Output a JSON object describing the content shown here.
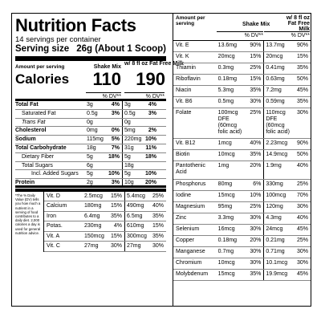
{
  "title": "Nutrition Facts",
  "servings_per_container": "14 servings per container",
  "serving_size_label": "Serving size",
  "serving_size_value": "26g (About 1 Scoop)",
  "amount_per_serving": "Amount per serving",
  "calories_label": "Calories",
  "col1_header": "Shake Mix",
  "col2_header": "w/ 8 fl oz Fat Free Milk",
  "calories_col1": "110",
  "calories_col2": "190",
  "dv_header": "% DV**",
  "left_rows": [
    {
      "name": "Total Fat",
      "a1": "3g",
      "p1": "4%",
      "a2": "3g",
      "p2": "4%",
      "style": "b"
    },
    {
      "name": "Saturated Fat",
      "a1": "0.5g",
      "p1": "3%",
      "a2": "0.5g",
      "p2": "3%",
      "style": "i1"
    },
    {
      "name": "Trans Fat",
      "a1": "0g",
      "p1": "",
      "a2": "0g",
      "p2": "",
      "style": "i1 trans"
    },
    {
      "name": "Cholesterol",
      "a1": "0mg",
      "p1": "0%",
      "a2": "5mg",
      "p2": "2%",
      "style": "b"
    },
    {
      "name": "Sodium",
      "a1": "115mg",
      "p1": "5%",
      "a2": "220mg",
      "p2": "10%",
      "style": "b"
    },
    {
      "name": "Total Carbohydrate",
      "a1": "18g",
      "p1": "7%",
      "a2": "31g",
      "p2": "11%",
      "style": "b"
    },
    {
      "name": "Dietary Fiber",
      "a1": "5g",
      "p1": "18%",
      "a2": "5g",
      "p2": "18%",
      "style": "i1"
    },
    {
      "name": "Total Sugars",
      "a1": "6g",
      "p1": "",
      "a2": "18g",
      "p2": "",
      "style": "i1"
    },
    {
      "name": "Incl. Added Sugars",
      "a1": "5g",
      "p1": "10%",
      "a2": "5g",
      "p2": "10%",
      "style": "i3"
    },
    {
      "name": "Protein",
      "a1": "2g",
      "p1": "3%",
      "a2": "10g",
      "p2": "20%",
      "style": "b thick"
    }
  ],
  "footnote": "*The % Daily Value (DV) tells you how much a nutrient in a serving of food contributes to a daily diet. 2,000 calories a day is used for general nutrition advice.",
  "foot_rows": [
    {
      "name": "Vit. D",
      "a1": "2.5mcg",
      "p1": "15%",
      "a2": "5.4mcg",
      "p2": "25%"
    },
    {
      "name": "Calcium",
      "a1": "180mg",
      "p1": "15%",
      "a2": "490mg",
      "p2": "40%"
    },
    {
      "name": "Iron",
      "a1": "6.4mg",
      "p1": "35%",
      "a2": "6.5mg",
      "p2": "35%"
    },
    {
      "name": "Potas.",
      "a1": "230mg",
      "p1": "4%",
      "a2": "610mg",
      "p2": "15%"
    },
    {
      "name": "Vit. A",
      "a1": "150mcg",
      "p1": "15%",
      "a2": "300mcg",
      "p2": "35%"
    },
    {
      "name": "Vit. C",
      "a1": "27mg",
      "p1": "30%",
      "a2": "27mg",
      "p2": "30%"
    }
  ],
  "right_header_amount": "Amount per serving",
  "right_col1_header": "Shake Mix",
  "right_col2_header": "w/ 8 fl oz Fat Free Milk",
  "right_rows": [
    {
      "name": "Vit. E",
      "a1": "13.6mg",
      "p1": "90%",
      "a2": "13.7mg",
      "p2": "90%",
      "h": 14
    },
    {
      "name": "Vit. K",
      "a1": "20mcg",
      "p1": "15%",
      "a2": "20mcg",
      "p2": "15%",
      "h": 14
    },
    {
      "name": "Thiamin",
      "a1": "0.3mg",
      "p1": "25%",
      "a2": "0.41mg",
      "p2": "35%",
      "h": 14
    },
    {
      "name": "Riboflavin",
      "a1": "0.18mg",
      "p1": "15%",
      "a2": "0.63mg",
      "p2": "50%",
      "h": 14
    },
    {
      "name": "Niacin",
      "a1": "5.3mg",
      "p1": "35%",
      "a2": "7.2mg",
      "p2": "45%",
      "h": 14
    },
    {
      "name": "Vit. B6",
      "a1": "0.5mg",
      "p1": "30%",
      "a2": "0.59mg",
      "p2": "35%",
      "h": 14
    },
    {
      "name": "Folate",
      "a1": "100mcg DFE (60mcg folic acid)",
      "p1": "25%",
      "a2": "110mcg DFE (60mcg folic acid)",
      "p2": "30%",
      "h": 38
    },
    {
      "name": "Vit. B12",
      "a1": "1mcg",
      "p1": "40%",
      "a2": "2.23mcg",
      "p2": "90%",
      "h": 14
    },
    {
      "name": "Biotin",
      "a1": "10mcg",
      "p1": "35%",
      "a2": "14.9mcg",
      "p2": "50%",
      "h": 14
    },
    {
      "name": "Pantothenic Acid",
      "a1": "1mg",
      "p1": "20%",
      "a2": "1.9mg",
      "p2": "40%",
      "h": 23
    },
    {
      "name": "Phosphorus",
      "a1": "80mg",
      "p1": "6%",
      "a2": "330mg",
      "p2": "25%",
      "h": 14
    },
    {
      "name": "Iodine",
      "a1": "15mcg",
      "p1": "10%",
      "a2": "100mcg",
      "p2": "70%",
      "h": 14
    },
    {
      "name": "Magnesium",
      "a1": "95mg",
      "p1": "25%",
      "a2": "120mg",
      "p2": "30%",
      "h": 14
    },
    {
      "name": "Zinc",
      "a1": "3.3mg",
      "p1": "30%",
      "a2": "4.3mg",
      "p2": "40%",
      "h": 14
    },
    {
      "name": "Selenium",
      "a1": "16mcg",
      "p1": "30%",
      "a2": "24mcg",
      "p2": "45%",
      "h": 14
    },
    {
      "name": "Copper",
      "a1": "0.18mg",
      "p1": "20%",
      "a2": "0.21mg",
      "p2": "25%",
      "h": 14
    },
    {
      "name": "Manganese",
      "a1": "0.7mg",
      "p1": "30%",
      "a2": "0.71mg",
      "p2": "30%",
      "h": 14
    },
    {
      "name": "Chromium",
      "a1": "10mcg",
      "p1": "30%",
      "a2": "10.1mcg",
      "p2": "30%",
      "h": 14
    },
    {
      "name": "Molybdenum",
      "a1": "15mcg",
      "p1": "35%",
      "a2": "19.9mcg",
      "p2": "45%",
      "h": 14
    }
  ]
}
